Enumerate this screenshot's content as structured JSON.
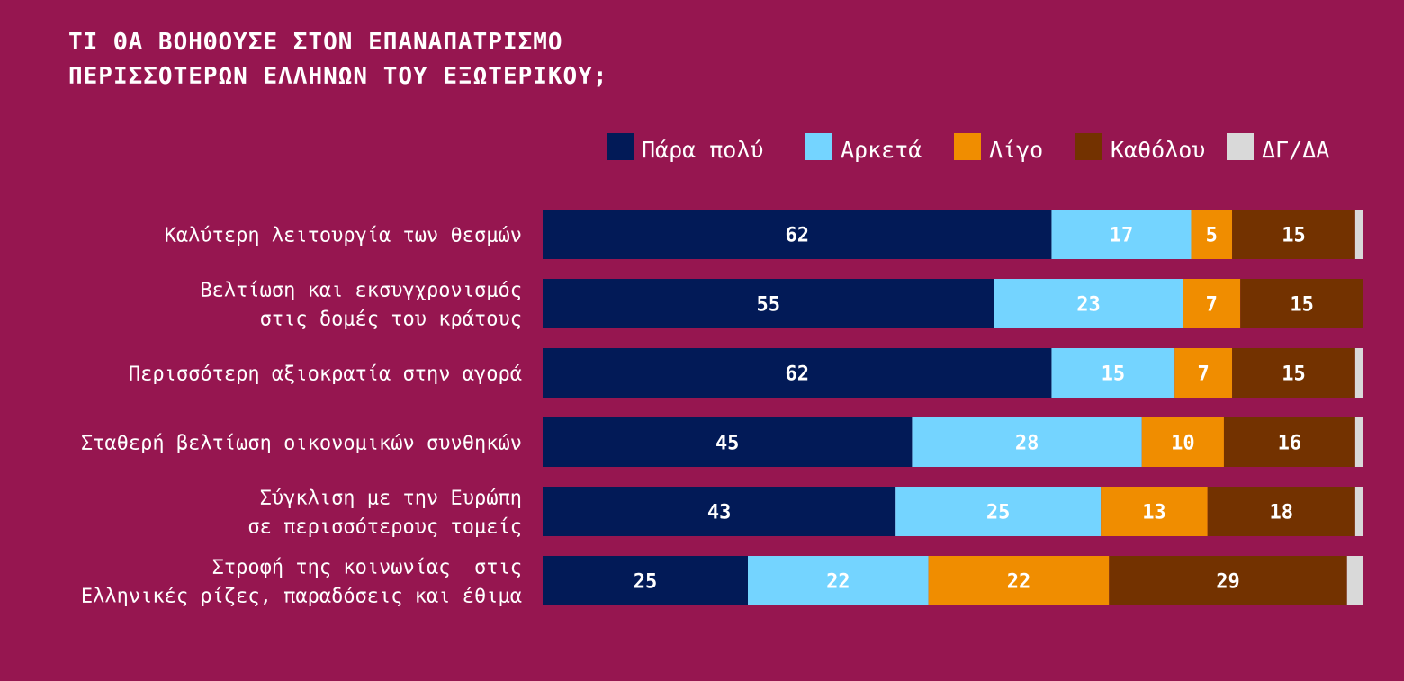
{
  "chart_data": {
    "type": "bar",
    "orientation": "horizontal",
    "stacked": true,
    "title_lines": [
      "ΤΙ ΘΑ ΒΟΗΘΟΥΣΕ ΣΤΟΝ ΕΠΑΝΑΠΑΤΡΙΣΜΟ",
      "ΠΕΡΙΣΣΟΤΕΡΩΝ ΕΛΛΗΝΩΝ ΤΟΥ ΕΞΩΤΕΡΙΚΟΥ;"
    ],
    "legend_position": "top-right",
    "categories": [
      [
        "Καλύτερη λειτουργία των θεσμών"
      ],
      [
        "Βελτίωση και εκσυγχρονισμός",
        "στις δομές του κράτους"
      ],
      [
        "Περισσότερη αξιοκρατία στην αγορά"
      ],
      [
        "Σταθερή βελτίωση οικονομικών συνθηκών"
      ],
      [
        "Σύγκλιση με την Ευρώπη",
        "σε περισσότερους τομείς"
      ],
      [
        "Στροφή της κοινωνίας  στις",
        "Ελληνικές ρίζες, παραδόσεις και έθιμα"
      ]
    ],
    "series": [
      {
        "name": "Πάρα πολύ",
        "color": "#021a57",
        "label_color": "#ffffff",
        "values": [
          62,
          55,
          62,
          45,
          43,
          25
        ]
      },
      {
        "name": "Αρκετά",
        "color": "#74d4ff",
        "label_color": "#ffffff",
        "values": [
          17,
          23,
          15,
          28,
          25,
          22
        ]
      },
      {
        "name": "Λίγο",
        "color": "#f08d00",
        "label_color": "#ffffff",
        "values": [
          5,
          7,
          7,
          10,
          13,
          22
        ]
      },
      {
        "name": "Καθόλου",
        "color": "#733200",
        "label_color": "#ffffff",
        "values": [
          15,
          15,
          15,
          16,
          18,
          29
        ]
      },
      {
        "name": "ΔΓ/ΔΑ",
        "color": "#d9d9d9",
        "label_color": "#ffffff",
        "values": [
          1,
          0,
          1,
          1,
          1,
          2
        ]
      }
    ],
    "show_labels_for_series": [
      0,
      1,
      2,
      3
    ],
    "xlim": [
      0,
      100
    ],
    "grid": false,
    "background": "#961650"
  }
}
